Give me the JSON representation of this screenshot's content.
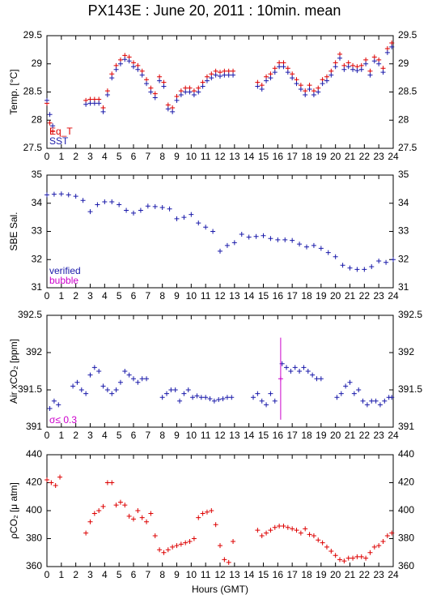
{
  "chart_data": [
    {
      "type": "scatter",
      "title": "PX143E : June 20, 2011 : 10min. mean",
      "ylabel": "Temp. [°C]",
      "xlim": [
        0,
        24
      ],
      "xticks": [
        0,
        1,
        2,
        3,
        4,
        5,
        6,
        7,
        8,
        9,
        10,
        11,
        12,
        13,
        14,
        15,
        16,
        17,
        18,
        19,
        20,
        21,
        22,
        23,
        24
      ],
      "ylim": [
        27.5,
        29.5
      ],
      "yticks": [
        27.5,
        28,
        28.5,
        29,
        29.5
      ],
      "x": [
        0.0,
        0.2,
        0.4,
        2.7,
        3.0,
        3.3,
        3.6,
        3.9,
        4.2,
        4.5,
        4.8,
        5.1,
        5.4,
        5.7,
        6.0,
        6.3,
        6.6,
        6.9,
        7.2,
        7.5,
        7.8,
        8.1,
        8.4,
        8.7,
        9.0,
        9.3,
        9.6,
        9.9,
        10.2,
        10.5,
        10.8,
        11.1,
        11.4,
        11.7,
        12.0,
        12.3,
        12.6,
        12.9,
        14.6,
        14.9,
        15.2,
        15.5,
        15.8,
        16.1,
        16.4,
        16.7,
        17.0,
        17.3,
        17.6,
        17.9,
        18.2,
        18.5,
        18.8,
        19.1,
        19.4,
        19.7,
        20.0,
        20.3,
        20.6,
        20.9,
        21.2,
        21.5,
        21.8,
        22.1,
        22.4,
        22.7,
        23.0,
        23.3,
        23.6,
        23.9
      ],
      "series": [
        {
          "name": "Eq_T",
          "color": "#dd0000",
          "values": [
            28.3,
            27.95,
            27.8,
            28.35,
            28.37,
            28.37,
            28.37,
            28.22,
            28.52,
            28.82,
            28.97,
            29.07,
            29.15,
            29.12,
            29.02,
            28.97,
            28.87,
            28.72,
            28.57,
            28.47,
            28.77,
            28.67,
            28.27,
            28.22,
            28.42,
            28.52,
            28.57,
            28.57,
            28.52,
            28.57,
            28.67,
            28.77,
            28.82,
            28.87,
            28.85,
            28.87,
            28.87,
            28.87,
            28.67,
            28.62,
            28.77,
            28.82,
            28.92,
            29.02,
            29.02,
            28.92,
            28.82,
            28.72,
            28.62,
            28.52,
            28.62,
            28.52,
            28.57,
            28.72,
            28.77,
            28.87,
            29.02,
            29.17,
            28.97,
            29.02,
            28.97,
            28.95,
            28.97,
            29.07,
            28.87,
            29.12,
            29.07,
            28.92,
            29.27,
            29.37
          ]
        },
        {
          "name": "SST",
          "color": "#1a1aaa",
          "values": [
            28.35,
            28.1,
            27.9,
            28.28,
            28.3,
            28.3,
            28.3,
            28.15,
            28.45,
            28.75,
            28.9,
            29.0,
            29.08,
            29.05,
            28.95,
            28.9,
            28.8,
            28.65,
            28.5,
            28.4,
            28.7,
            28.6,
            28.2,
            28.15,
            28.35,
            28.45,
            28.5,
            28.5,
            28.45,
            28.5,
            28.6,
            28.7,
            28.75,
            28.8,
            28.78,
            28.8,
            28.8,
            28.8,
            28.6,
            28.55,
            28.7,
            28.75,
            28.85,
            28.95,
            28.95,
            28.85,
            28.75,
            28.65,
            28.55,
            28.45,
            28.55,
            28.45,
            28.5,
            28.65,
            28.7,
            28.8,
            28.95,
            29.1,
            28.9,
            28.95,
            28.9,
            28.88,
            28.9,
            29.0,
            28.8,
            29.05,
            29.0,
            28.85,
            29.2,
            29.3
          ]
        }
      ]
    },
    {
      "type": "scatter",
      "ylabel": "SBE Sal.",
      "xlim": [
        0,
        24
      ],
      "xticks": [
        0,
        1,
        2,
        3,
        4,
        5,
        6,
        7,
        8,
        9,
        10,
        11,
        12,
        13,
        14,
        15,
        16,
        17,
        18,
        19,
        20,
        21,
        22,
        23,
        24
      ],
      "ylim": [
        31,
        35
      ],
      "yticks": [
        31,
        32,
        33,
        34,
        35
      ],
      "x": [
        0,
        0.5,
        1,
        1.5,
        2,
        2.5,
        3,
        3.5,
        4,
        4.5,
        5,
        5.5,
        6,
        6.5,
        7,
        7.5,
        8,
        8.5,
        9,
        9.5,
        10,
        10.5,
        11,
        11.5,
        12,
        12.5,
        13,
        13.5,
        14,
        14.5,
        15,
        15.5,
        16,
        16.5,
        17,
        17.5,
        18,
        18.5,
        19,
        19.5,
        20,
        20.5,
        21,
        21.5,
        22,
        22.5,
        23,
        23.5,
        24
      ],
      "series": [
        {
          "name": "verified",
          "color": "#1a1aaa",
          "values": [
            34.3,
            34.32,
            34.33,
            34.3,
            34.25,
            34.1,
            33.7,
            33.95,
            34.05,
            34.05,
            33.95,
            33.75,
            33.65,
            33.75,
            33.9,
            33.88,
            33.85,
            33.8,
            33.45,
            33.5,
            33.6,
            33.3,
            33.15,
            33.0,
            32.3,
            32.5,
            32.6,
            32.9,
            32.8,
            32.82,
            32.85,
            32.75,
            32.7,
            32.7,
            32.68,
            32.55,
            32.45,
            32.5,
            32.4,
            32.25,
            32.1,
            31.8,
            31.7,
            31.65,
            31.65,
            31.75,
            31.95,
            31.9,
            32.0
          ]
        },
        {
          "name": "bubble",
          "color": "#cc00cc",
          "values": [
            null,
            null,
            null,
            null,
            null,
            null,
            null,
            null,
            null,
            null,
            null,
            null,
            null,
            null,
            null,
            null,
            null,
            null,
            null,
            null,
            null,
            null,
            null,
            null,
            null,
            null,
            null,
            null,
            null,
            null,
            null,
            null,
            null,
            null,
            null,
            null,
            null,
            null,
            null,
            null,
            null,
            null,
            null,
            null,
            null,
            null,
            null,
            null,
            null
          ]
        }
      ]
    },
    {
      "type": "scatter",
      "ylabel": "Air xCO₂ [ppm]",
      "xlim": [
        0,
        24
      ],
      "xticks": [
        0,
        1,
        2,
        3,
        4,
        5,
        6,
        7,
        8,
        9,
        10,
        11,
        12,
        13,
        14,
        15,
        16,
        17,
        18,
        19,
        20,
        21,
        22,
        23,
        24
      ],
      "ylim": [
        391,
        392.5
      ],
      "yticks": [
        391,
        391.5,
        392,
        392.5
      ],
      "x": [
        0.2,
        0.5,
        0.8,
        1.8,
        2.1,
        2.4,
        2.7,
        3.0,
        3.3,
        3.6,
        3.9,
        4.2,
        4.5,
        4.8,
        5.1,
        5.4,
        5.7,
        6.0,
        6.3,
        6.6,
        6.9,
        8.0,
        8.3,
        8.6,
        8.9,
        9.2,
        9.5,
        9.8,
        10.1,
        10.4,
        10.7,
        11.0,
        11.3,
        11.6,
        11.9,
        12.2,
        12.5,
        12.8,
        14.3,
        14.6,
        14.9,
        15.2,
        15.5,
        15.8,
        16.3,
        16.6,
        16.9,
        17.2,
        17.5,
        17.8,
        18.1,
        18.4,
        18.7,
        19.0,
        20.1,
        20.4,
        20.7,
        21.0,
        21.3,
        21.6,
        21.9,
        22.2,
        22.5,
        22.8,
        23.1,
        23.4,
        23.7,
        23.9
      ],
      "series": [
        {
          "color": "#1a1aaa",
          "values": [
            391.25,
            391.35,
            391.3,
            391.55,
            391.6,
            391.5,
            391.45,
            391.7,
            391.8,
            391.75,
            391.55,
            391.5,
            391.45,
            391.5,
            391.6,
            391.75,
            391.7,
            391.65,
            391.6,
            391.65,
            391.65,
            391.4,
            391.45,
            391.5,
            391.5,
            391.35,
            391.45,
            391.5,
            391.4,
            391.42,
            391.4,
            391.4,
            391.38,
            391.35,
            391.37,
            391.38,
            391.4,
            391.4,
            391.4,
            391.45,
            391.35,
            391.3,
            391.45,
            391.35,
            391.85,
            391.8,
            391.75,
            391.8,
            391.75,
            391.8,
            391.75,
            391.7,
            391.65,
            391.65,
            391.4,
            391.45,
            391.55,
            391.6,
            391.45,
            391.5,
            391.35,
            391.3,
            391.35,
            391.35,
            391.3,
            391.35,
            391.4,
            391.4
          ]
        },
        {
          "name": "σ≤ 0.3",
          "color": "#cc00cc",
          "x": [
            16.2
          ],
          "values": [
            391.65
          ],
          "errors": [
            0.55
          ]
        }
      ]
    },
    {
      "type": "scatter",
      "ylabel": "ρCO₂ [μ atm]",
      "xlabel": "Hours (GMT)",
      "xlim": [
        0,
        24
      ],
      "xticks": [
        0,
        1,
        2,
        3,
        4,
        5,
        6,
        7,
        8,
        9,
        10,
        11,
        12,
        13,
        14,
        15,
        16,
        17,
        18,
        19,
        20,
        21,
        22,
        23,
        24
      ],
      "ylim": [
        360,
        440
      ],
      "yticks": [
        360,
        380,
        400,
        420,
        440
      ],
      "x": [
        0.0,
        0.3,
        0.6,
        0.9,
        2.7,
        3.0,
        3.3,
        3.6,
        3.9,
        4.2,
        4.5,
        4.8,
        5.1,
        5.4,
        5.7,
        6.0,
        6.3,
        6.6,
        6.9,
        7.2,
        7.5,
        7.8,
        8.1,
        8.4,
        8.7,
        9.0,
        9.3,
        9.6,
        9.9,
        10.2,
        10.5,
        10.8,
        11.1,
        11.4,
        11.7,
        12.0,
        12.3,
        12.6,
        12.9,
        14.6,
        14.9,
        15.2,
        15.5,
        15.8,
        16.1,
        16.4,
        16.7,
        17.0,
        17.3,
        17.6,
        17.9,
        18.2,
        18.5,
        18.8,
        19.1,
        19.4,
        19.7,
        20.0,
        20.3,
        20.6,
        20.9,
        21.2,
        21.5,
        21.8,
        22.1,
        22.4,
        22.7,
        23.0,
        23.3,
        23.6,
        23.9
      ],
      "series": [
        {
          "color": "#dd0000",
          "values": [
            422,
            420,
            418,
            424,
            384,
            392,
            398,
            400,
            403,
            420,
            420,
            404,
            406,
            404,
            396,
            394,
            400,
            395,
            392,
            398,
            382,
            372,
            370,
            372,
            374,
            375,
            376,
            377,
            378,
            380,
            395,
            398,
            399,
            400,
            390,
            375,
            365,
            363,
            378,
            386,
            382,
            384,
            386,
            388,
            389,
            389,
            388,
            387,
            386,
            384,
            387,
            383,
            382,
            379,
            377,
            374,
            371,
            368,
            365,
            364,
            366,
            366,
            367,
            367,
            366,
            370,
            374,
            375,
            378,
            382,
            384
          ]
        }
      ]
    }
  ]
}
